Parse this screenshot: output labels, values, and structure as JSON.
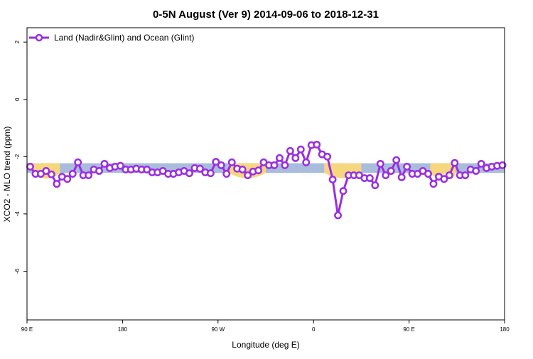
{
  "chart_data": {
    "type": "line",
    "title": "0-5N August (Ver 9)   2014-09-06 to 2018-12-31",
    "xlabel": "Longitude (deg E)",
    "ylabel": "XCO2 - MLO trend (ppm)",
    "x_ticks": [
      {
        "value": 90,
        "label": "90 E"
      },
      {
        "value": 180,
        "label": "180"
      },
      {
        "value": 270,
        "label": "90 W"
      },
      {
        "value": 360,
        "label": "0"
      },
      {
        "value": 450,
        "label": "90 E"
      },
      {
        "value": 540,
        "label": "180"
      }
    ],
    "xlim": [
      90,
      540
    ],
    "y_ticks": [
      2,
      0,
      -2,
      -4,
      -6
    ],
    "ylim": [
      -7.7,
      2.5
    ],
    "grid": false,
    "legend_position": "top-left",
    "colors": {
      "line": "#9b2ee0",
      "marker_fill": "#ffffff",
      "band_blue": "#a9bcdc",
      "band_yellow": "#f6d77e",
      "axis": "#000000"
    },
    "background_band": {
      "center": -2.4,
      "half_width": 0.17,
      "yellow_spans": [
        {
          "x0": 96,
          "x1": 121,
          "depth": 0.25
        },
        {
          "x0": 280,
          "x1": 315,
          "depth": 0.22
        },
        {
          "x0": 370,
          "x1": 405,
          "depth": 0.22
        },
        {
          "x0": 470,
          "x1": 484,
          "depth": 0.15
        },
        {
          "x0": 484,
          "x1": 494,
          "depth": 0.3
        }
      ]
    },
    "series": [
      {
        "name": "Land (Nadir&Glint) and Ocean (Glint)",
        "x": [
          93,
          98,
          103,
          108,
          113,
          118,
          123,
          128,
          133,
          138,
          143,
          148,
          153,
          158,
          163,
          168,
          173,
          178,
          183,
          188,
          193,
          198,
          203,
          208,
          213,
          218,
          223,
          228,
          233,
          238,
          243,
          248,
          253,
          258,
          263,
          268,
          273,
          278,
          283,
          288,
          293,
          298,
          303,
          308,
          313,
          318,
          323,
          328,
          333,
          338,
          343,
          348,
          353,
          358,
          363,
          368,
          373,
          378,
          383,
          388,
          393,
          398,
          403,
          408,
          413,
          418,
          423,
          428,
          433,
          438,
          443,
          448,
          453,
          458,
          463,
          468,
          473,
          478,
          483,
          488,
          493,
          498,
          503,
          508,
          513,
          518,
          523,
          528,
          533,
          538
        ],
        "y": [
          -2.35,
          -2.6,
          -2.6,
          -2.5,
          -2.62,
          -2.95,
          -2.7,
          -2.78,
          -2.6,
          -2.2,
          -2.65,
          -2.65,
          -2.45,
          -2.5,
          -2.25,
          -2.4,
          -2.35,
          -2.32,
          -2.45,
          -2.45,
          -2.42,
          -2.45,
          -2.45,
          -2.55,
          -2.55,
          -2.5,
          -2.6,
          -2.6,
          -2.55,
          -2.5,
          -2.58,
          -2.4,
          -2.42,
          -2.55,
          -2.58,
          -2.18,
          -2.3,
          -2.6,
          -2.2,
          -2.42,
          -2.45,
          -2.65,
          -2.52,
          -2.48,
          -2.2,
          -2.3,
          -2.3,
          -2.05,
          -2.3,
          -1.8,
          -2.05,
          -1.75,
          -2.2,
          -1.6,
          -1.58,
          -1.92,
          -2.0,
          -2.8,
          -4.05,
          -3.2,
          -2.65,
          -2.65,
          -2.65,
          -2.75,
          -2.75,
          -3.0,
          -2.25,
          -2.65,
          -2.5,
          -2.12,
          -2.72,
          -2.35,
          -2.6,
          -2.6,
          -2.5,
          -2.6,
          -2.95,
          -2.7,
          -2.78,
          -2.65,
          -2.22,
          -2.65,
          -2.65,
          -2.45,
          -2.5,
          -2.25,
          -2.4,
          -2.35,
          -2.32,
          -2.3
        ]
      }
    ]
  }
}
